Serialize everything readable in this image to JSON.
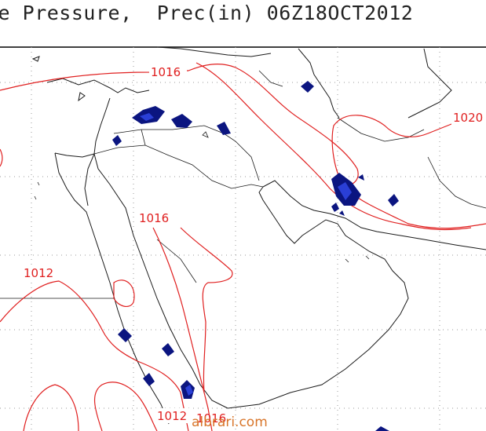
{
  "title": "ce Pressure,  Prec(in) 06Z18OCT2012",
  "contour_labels": [
    "1016",
    "1020",
    "1016",
    "1012",
    "1012",
    "1016"
  ],
  "colors": {
    "isobar": "#e02020",
    "coast": "#1a1a1a",
    "precip_dark": "#0b1580",
    "precip_light": "#2a3fd6",
    "grid": "#9a9a9a"
  },
  "watermark": "albrari.com"
}
